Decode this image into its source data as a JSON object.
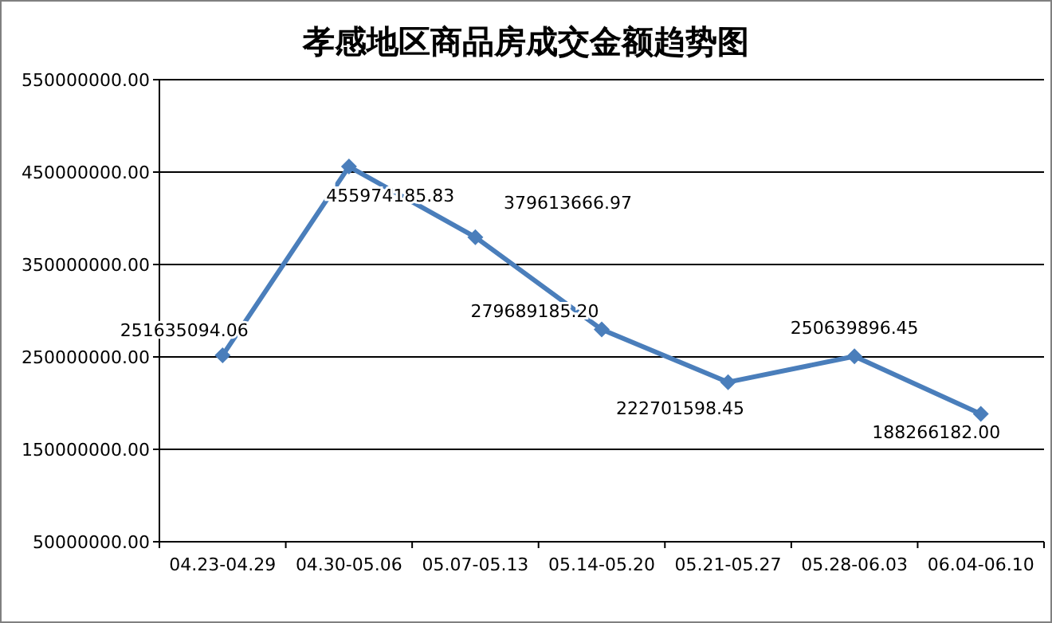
{
  "chart_data": {
    "type": "line",
    "title": "孝感地区商品房成交金额趋势图",
    "categories": [
      "04.23-04.29",
      "04.30-05.06",
      "05.07-05.13",
      "05.14-05.20",
      "05.21-05.27",
      "05.28-06.03",
      "06.04-06.10"
    ],
    "series": [
      {
        "color": "#4a7ebb",
        "values": [
          251635094.06,
          455974185.83,
          379613666.97,
          279689185.2,
          222701598.45,
          250639896.45,
          188266182.0
        ],
        "value_labels": [
          "251635094.06",
          "455974185.83",
          "379613666.97",
          "279689185.20",
          "222701598.45",
          "250639896.45",
          "188266182.00"
        ]
      }
    ],
    "ylim": [
      50000000,
      550000000
    ],
    "yticks": [
      {
        "value": 50000000,
        "label": "50000000.00"
      },
      {
        "value": 150000000,
        "label": "150000000.00"
      },
      {
        "value": 250000000,
        "label": "250000000.00"
      },
      {
        "value": 350000000,
        "label": "350000000.00"
      },
      {
        "value": 450000000,
        "label": "450000000.00"
      },
      {
        "value": 550000000,
        "label": "550000000.00"
      }
    ],
    "grid": "y",
    "marker": "diamond",
    "line_style": "solid"
  }
}
